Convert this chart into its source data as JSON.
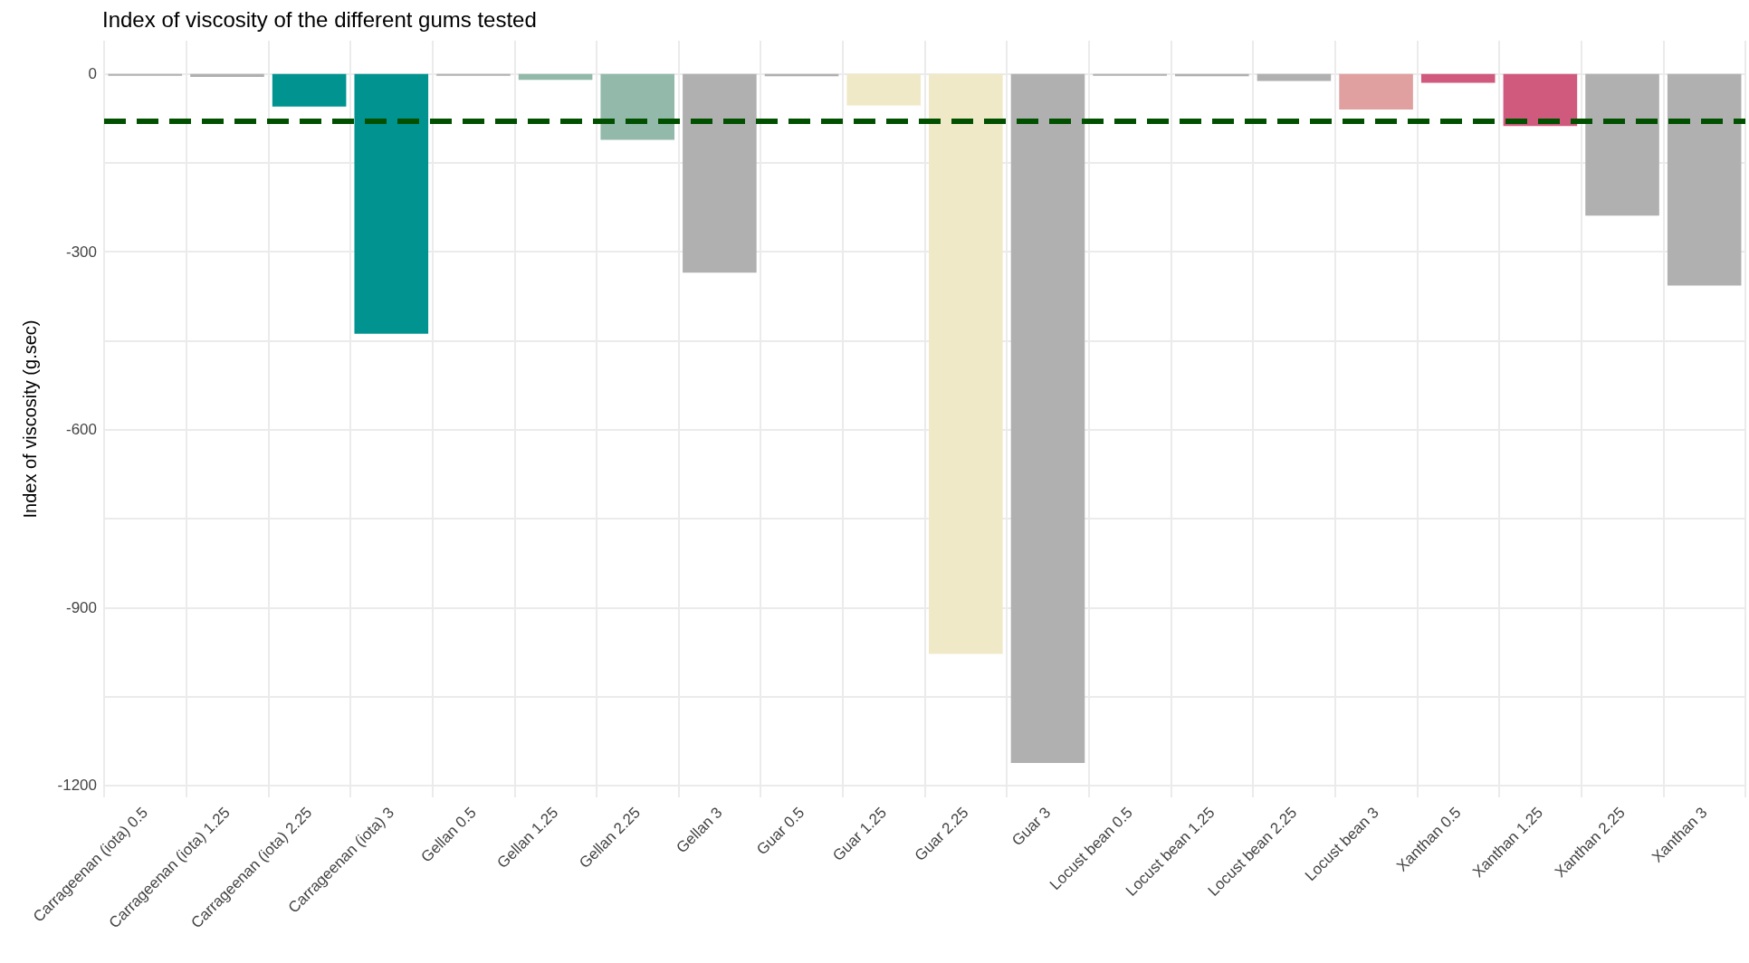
{
  "chart_data": {
    "type": "bar",
    "title": "Index of viscosity of the different gums tested",
    "ylabel": "Index of viscosity (g.sec)",
    "categories": [
      "Carrageenan (iota) 0.5",
      "Carrageenan (iota) 1.25",
      "Carrageenan (iota) 2.25",
      "Carrageenan (iota) 3",
      "Gellan 0.5",
      "Gellan 1.25",
      "Gellan 2.25",
      "Gellan 3",
      "Guar 0.5",
      "Guar 1.25",
      "Guar 2.25",
      "Guar 3",
      "Locust bean 0.5",
      "Locust bean 1.25",
      "Locust bean 2.25",
      "Locust bean 3",
      "Xanthan 0.5",
      "Xanthan 1.25",
      "Xanthan 2.25",
      "Xanthan 3"
    ],
    "values": [
      -3,
      -5,
      -55,
      -438,
      -3,
      -10,
      -111,
      -335,
      -4,
      -53,
      -978,
      -1162,
      -3,
      -4,
      -12,
      -60,
      -15,
      -88,
      -239,
      -357
    ],
    "colors": [
      "#b0b0b0",
      "#b0b0b0",
      "#009390",
      "#009390",
      "#b0b0b0",
      "#93b9aa",
      "#93b9aa",
      "#b0b0b0",
      "#b0b0b0",
      "#f0e9c7",
      "#f0e9c7",
      "#b0b0b0",
      "#b0b0b0",
      "#b0b0b0",
      "#b0b0b0",
      "#e0a0a0",
      "#d05a7e",
      "#d05a7e",
      "#b0b0b0",
      "#b0b0b0"
    ],
    "ylim": [
      -1220,
      56
    ],
    "yticks": [
      -1200,
      {
        "value": -1050,
        "label": null
      },
      -900,
      {
        "value": -750,
        "label": null
      },
      -600,
      {
        "value": -450,
        "label": null
      },
      -300,
      {
        "value": -150,
        "label": null
      },
      0
    ],
    "grid": true,
    "ref_lines": [
      {
        "axis": "y",
        "value": -79,
        "color": "#005000",
        "line_style": "dashed"
      }
    ]
  }
}
